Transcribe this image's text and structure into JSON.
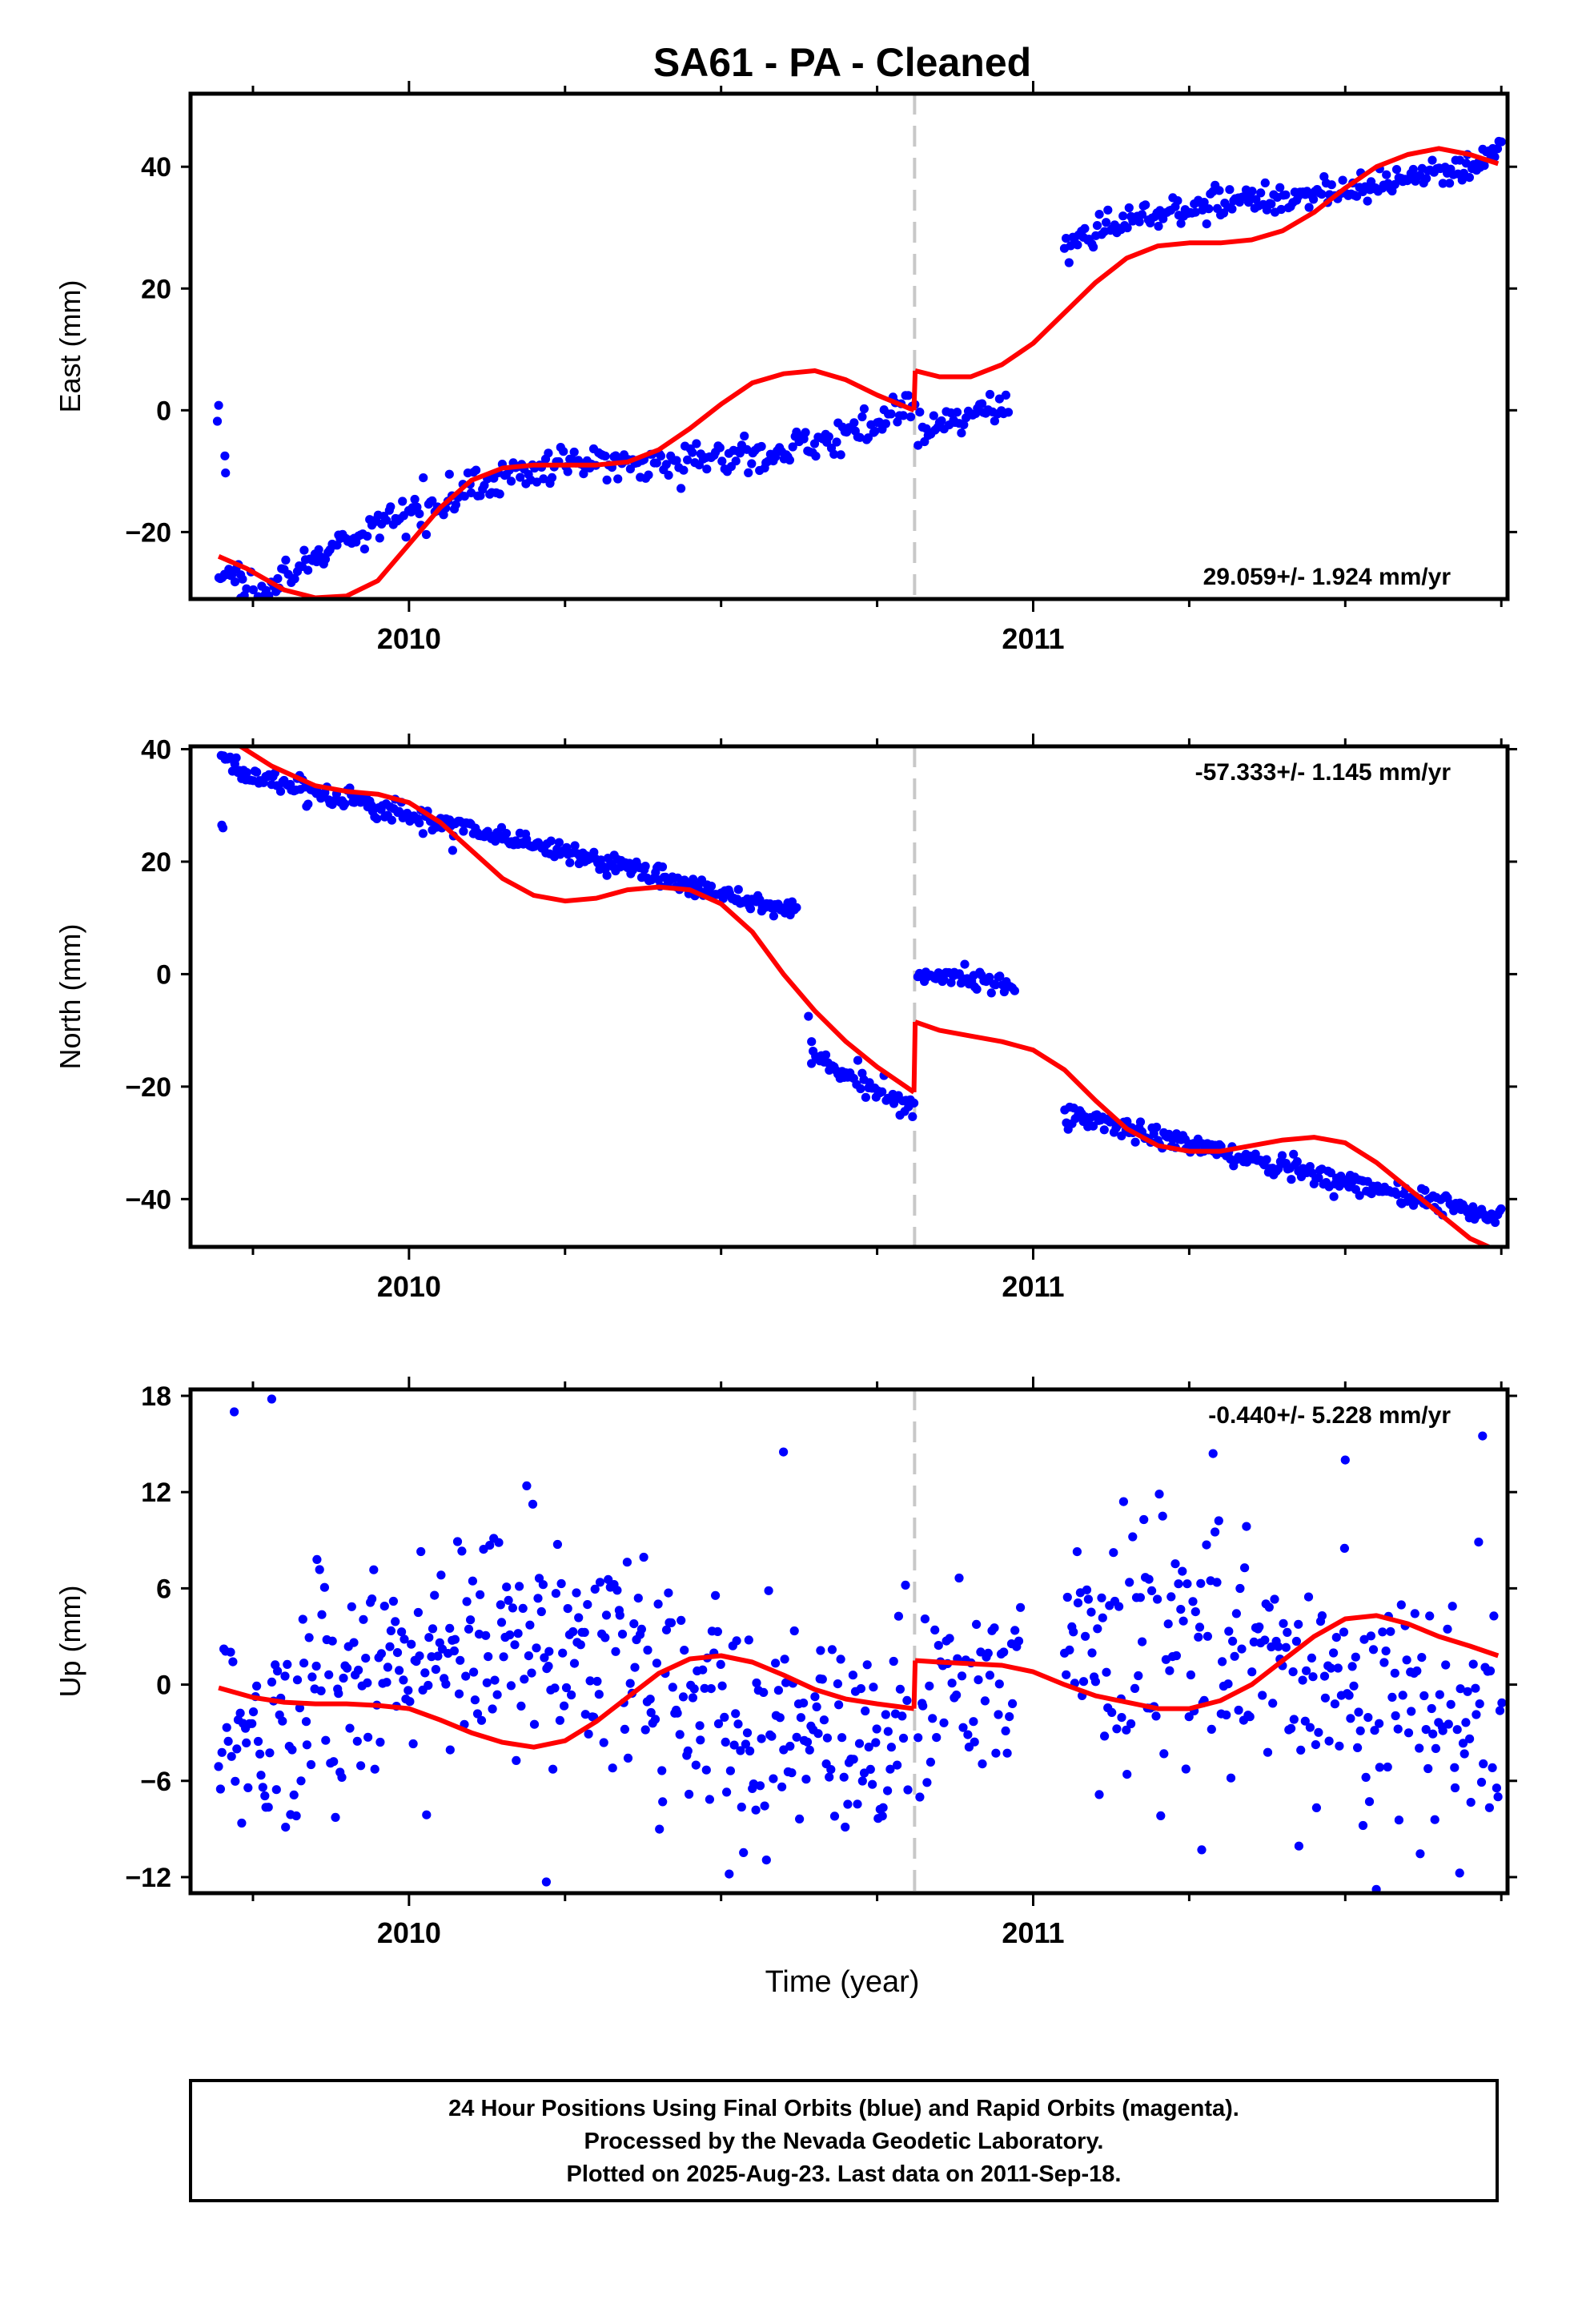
{
  "title": "SA61  - PA - Cleaned",
  "xlabel": "Time (year)",
  "footer": {
    "line1": "24 Hour Positions Using Final Orbits (blue) and Rapid Orbits (magenta).",
    "line2": "Processed by the Nevada Geodetic Laboratory.",
    "line3": "Plotted on 2025-Aug-23. Last data on 2011-Sep-18."
  },
  "colors": {
    "data": "#0000ff",
    "model": "#ff0000",
    "equipment_change": "#c8c8c8",
    "axes": "#000000"
  },
  "chart_data": [
    {
      "type": "scatter",
      "component": "east",
      "ylabel": "East (mm)",
      "rate_label": "29.059+/- 1.924 mm/yr",
      "xlim": [
        2009.65,
        2011.76
      ],
      "ylim": [
        -31,
        52
      ],
      "xticks": [
        2010,
        2011
      ],
      "yticks": [
        -20,
        0,
        20,
        40
      ],
      "grid": false,
      "equipment_change_x": 2010.81,
      "rate_position": "bottom-right",
      "observations": [
        {
          "x": [
            2009.695,
            2009.73
          ],
          "y_start": -27.5,
          "y_end": -26.5,
          "noise": 1.2,
          "n": 12
        },
        {
          "x": [
            2009.73,
            2010.81
          ],
          "y_start": -26.5,
          "y_end": 3.0,
          "noise": 1.4,
          "n": 310,
          "seasonal": 4.0
        },
        {
          "x": [
            2010.815,
            2010.96
          ],
          "y_start": -4.0,
          "y_end": 1.0,
          "noise": 1.2,
          "n": 42
        },
        {
          "x": [
            2011.05,
            2011.75
          ],
          "y_start": 24.0,
          "y_end": 46.0,
          "noise": 1.2,
          "n": 210,
          "seasonal": 4.0
        }
      ],
      "outliers": [
        {
          "x": 2009.695,
          "y": 0.8
        },
        {
          "x": 2009.693,
          "y": -1.8
        },
        {
          "x": 2009.705,
          "y": -7.5
        },
        {
          "x": 2009.706,
          "y": -10.3
        }
      ],
      "model_segments": [
        {
          "x": [
            2009.695,
            2009.74,
            2009.8,
            2009.85,
            2009.9,
            2009.95,
            2010.0,
            2010.05,
            2010.1,
            2010.15,
            2010.2,
            2010.25,
            2010.3,
            2010.35,
            2010.4,
            2010.45,
            2010.5,
            2010.55,
            2010.6,
            2010.65,
            2010.7,
            2010.75,
            2010.809
          ],
          "y": [
            -24.0,
            -26.0,
            -29.5,
            -30.8,
            -30.5,
            -28.0,
            -22.0,
            -16.0,
            -11.5,
            -9.5,
            -9.0,
            -9.0,
            -9.0,
            -8.5,
            -6.5,
            -3.0,
            1.0,
            4.5,
            6.0,
            6.5,
            5.0,
            2.5,
            0.0
          ]
        },
        {
          "x": [
            2010.811,
            2010.85,
            2010.9,
            2010.95,
            2011.0,
            2011.05,
            2011.1,
            2011.15,
            2011.2,
            2011.25,
            2011.3,
            2011.35,
            2011.4,
            2011.45,
            2011.5,
            2011.55,
            2011.6,
            2011.65,
            2011.7,
            2011.745
          ],
          "y": [
            6.5,
            5.5,
            5.5,
            7.5,
            11.0,
            16.0,
            21.0,
            25.0,
            27.0,
            27.5,
            27.5,
            28.0,
            29.5,
            32.5,
            36.5,
            40.0,
            42.0,
            43.0,
            42.0,
            40.5
          ]
        }
      ]
    },
    {
      "type": "scatter",
      "component": "north",
      "ylabel": "North (mm)",
      "rate_label": "-57.333+/- 1.145 mm/yr",
      "xlim": [
        2009.65,
        2011.76
      ],
      "ylim": [
        -48.5,
        40.5
      ],
      "xticks": [
        2010,
        2011
      ],
      "yticks": [
        -40,
        -20,
        0,
        20,
        40
      ],
      "grid": false,
      "equipment_change_x": 2010.81,
      "rate_position": "top-right",
      "observations": [
        {
          "x": [
            2009.7,
            2009.72
          ],
          "y_start": 39.0,
          "y_end": 37.0,
          "noise": 0.8,
          "n": 8
        },
        {
          "x": [
            2009.72,
            2010.4
          ],
          "y_start": 36.0,
          "y_end": 17.5,
          "noise": 1.0,
          "n": 230
        },
        {
          "x": [
            2010.4,
            2010.62
          ],
          "y_start": 17.0,
          "y_end": 11.0,
          "noise": 1.0,
          "n": 80
        },
        {
          "x": [
            2010.645,
            2010.81
          ],
          "y_start": -14.5,
          "y_end": -23.5,
          "noise": 1.2,
          "n": 52
        },
        {
          "x": [
            2010.815,
            2010.97
          ],
          "y_start": 0.5,
          "y_end": -2.0,
          "noise": 1.0,
          "n": 48
        },
        {
          "x": [
            2011.05,
            2011.75
          ],
          "y_start": -25.0,
          "y_end": -43.5,
          "noise": 1.0,
          "n": 230
        }
      ],
      "outliers": [
        {
          "x": 2009.7,
          "y": 26.5
        },
        {
          "x": 2009.702,
          "y": 26.0
        },
        {
          "x": 2010.07,
          "y": 22.0
        },
        {
          "x": 2010.64,
          "y": -7.5
        },
        {
          "x": 2010.645,
          "y": -12.0
        }
      ],
      "model_segments": [
        {
          "x": [
            2009.73,
            2009.78,
            2009.85,
            2009.9,
            2009.95,
            2010.0,
            2010.05,
            2010.1,
            2010.15,
            2010.2,
            2010.25,
            2010.3,
            2010.35,
            2010.4,
            2010.45,
            2010.5,
            2010.55,
            2010.6,
            2010.65,
            2010.7,
            2010.75,
            2010.809
          ],
          "y": [
            40.5,
            37.0,
            33.5,
            32.5,
            32.0,
            30.5,
            27.0,
            22.0,
            17.0,
            14.0,
            13.0,
            13.5,
            15.0,
            15.5,
            15.0,
            12.5,
            7.5,
            0.0,
            -6.5,
            -12.0,
            -16.5,
            -21.0
          ]
        },
        {
          "x": [
            2010.811,
            2010.85,
            2010.9,
            2010.95,
            2011.0,
            2011.05,
            2011.1,
            2011.15,
            2011.2,
            2011.25,
            2011.3,
            2011.35,
            2011.4,
            2011.45,
            2011.5,
            2011.55,
            2011.6,
            2011.65,
            2011.7,
            2011.73
          ],
          "y": [
            -8.5,
            -10.0,
            -11.0,
            -12.0,
            -13.5,
            -17.0,
            -22.5,
            -27.5,
            -30.5,
            -31.5,
            -31.5,
            -30.5,
            -29.5,
            -29.0,
            -30.0,
            -33.5,
            -38.0,
            -42.5,
            -47.0,
            -48.5
          ]
        }
      ]
    },
    {
      "type": "scatter",
      "component": "up",
      "ylabel": "Up (mm)",
      "rate_label": "-0.440+/- 5.228 mm/yr",
      "xlim": [
        2009.65,
        2011.76
      ],
      "ylim": [
        -13,
        18.4
      ],
      "xticks": [
        2010,
        2011
      ],
      "yticks": [
        -12,
        -6,
        0,
        6,
        12,
        18
      ],
      "grid": false,
      "equipment_change_x": 2010.81,
      "rate_position": "top-right",
      "observations": [
        {
          "x": [
            2009.695,
            2010.8
          ],
          "y_start": 0.0,
          "y_end": 0.0,
          "noise": 3.6,
          "n": 420,
          "seasonal": 3.0
        },
        {
          "x": [
            2010.815,
            2010.98
          ],
          "y_start": 0.0,
          "y_end": 0.0,
          "noise": 3.0,
          "n": 55
        },
        {
          "x": [
            2011.05,
            2011.75
          ],
          "y_start": 0.0,
          "y_end": 1.5,
          "noise": 4.0,
          "n": 250,
          "seasonal": 3.0
        }
      ],
      "outliers": [
        {
          "x": 2009.72,
          "y": 17.0
        },
        {
          "x": 2009.78,
          "y": 17.8
        },
        {
          "x": 2010.6,
          "y": 14.5
        },
        {
          "x": 2011.5,
          "y": 14.0
        },
        {
          "x": 2011.72,
          "y": 15.5
        },
        {
          "x": 2010.22,
          "y": -12.3
        },
        {
          "x": 2011.27,
          "y": -10.3
        }
      ],
      "model_segments": [
        {
          "x": [
            2009.695,
            2009.75,
            2009.8,
            2009.85,
            2009.9,
            2009.95,
            2010.0,
            2010.05,
            2010.1,
            2010.15,
            2010.2,
            2010.25,
            2010.3,
            2010.35,
            2010.4,
            2010.45,
            2010.5,
            2010.55,
            2010.6,
            2010.65,
            2010.7,
            2010.75,
            2010.809
          ],
          "y": [
            -0.2,
            -0.8,
            -1.1,
            -1.2,
            -1.2,
            -1.3,
            -1.5,
            -2.2,
            -3.0,
            -3.6,
            -3.9,
            -3.5,
            -2.3,
            -0.8,
            0.7,
            1.6,
            1.8,
            1.4,
            0.6,
            -0.3,
            -0.9,
            -1.2,
            -1.5
          ]
        },
        {
          "x": [
            2010.811,
            2010.85,
            2010.9,
            2010.95,
            2011.0,
            2011.05,
            2011.1,
            2011.15,
            2011.2,
            2011.25,
            2011.3,
            2011.35,
            2011.4,
            2011.45,
            2011.5,
            2011.55,
            2011.6,
            2011.65,
            2011.7,
            2011.745
          ],
          "y": [
            1.5,
            1.4,
            1.3,
            1.2,
            0.8,
            0.0,
            -0.7,
            -1.1,
            -1.5,
            -1.5,
            -1.0,
            0.0,
            1.5,
            3.0,
            4.1,
            4.3,
            3.8,
            3.0,
            2.4,
            1.8
          ]
        }
      ]
    }
  ]
}
